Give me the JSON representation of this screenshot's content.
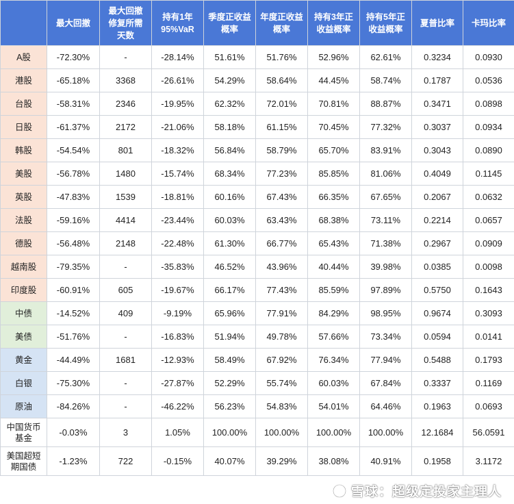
{
  "table": {
    "headers": [
      "",
      "最大回撤",
      "最大回撤\n修复所需\n天数",
      "持有1年\n95%VaR",
      "季度正收益\n概率",
      "年度正收益\n概率",
      "持有3年正\n收益概率",
      "持有5年正\n收益概率",
      "夏普比率",
      "卡玛比率"
    ],
    "rows": [
      {
        "name": "A股",
        "group": "equity",
        "values": [
          "-72.30%",
          "-",
          "-28.14%",
          "51.61%",
          "51.76%",
          "52.96%",
          "62.61%",
          "0.3234",
          "0.0930"
        ]
      },
      {
        "name": "港股",
        "group": "equity",
        "values": [
          "-65.18%",
          "3368",
          "-26.61%",
          "54.29%",
          "58.64%",
          "44.45%",
          "58.74%",
          "0.1787",
          "0.0536"
        ]
      },
      {
        "name": "台股",
        "group": "equity",
        "values": [
          "-58.31%",
          "2346",
          "-19.95%",
          "62.32%",
          "72.01%",
          "70.81%",
          "88.87%",
          "0.3471",
          "0.0898"
        ]
      },
      {
        "name": "日股",
        "group": "equity",
        "values": [
          "-61.37%",
          "2172",
          "-21.06%",
          "58.18%",
          "61.15%",
          "70.45%",
          "77.32%",
          "0.3037",
          "0.0934"
        ]
      },
      {
        "name": "韩股",
        "group": "equity",
        "values": [
          "-54.54%",
          "801",
          "-18.32%",
          "56.84%",
          "58.79%",
          "65.70%",
          "83.91%",
          "0.3043",
          "0.0890"
        ]
      },
      {
        "name": "美股",
        "group": "equity",
        "values": [
          "-56.78%",
          "1480",
          "-15.74%",
          "68.34%",
          "77.23%",
          "85.85%",
          "81.06%",
          "0.4049",
          "0.1145"
        ]
      },
      {
        "name": "英股",
        "group": "equity",
        "values": [
          "-47.83%",
          "1539",
          "-18.81%",
          "60.16%",
          "67.43%",
          "66.35%",
          "67.65%",
          "0.2067",
          "0.0632"
        ]
      },
      {
        "name": "法股",
        "group": "equity",
        "values": [
          "-59.16%",
          "4414",
          "-23.44%",
          "60.03%",
          "63.43%",
          "68.38%",
          "73.11%",
          "0.2214",
          "0.0657"
        ]
      },
      {
        "name": "德股",
        "group": "equity",
        "values": [
          "-56.48%",
          "2148",
          "-22.48%",
          "61.30%",
          "66.77%",
          "65.43%",
          "71.38%",
          "0.2967",
          "0.0909"
        ]
      },
      {
        "name": "越南股",
        "group": "equity",
        "values": [
          "-79.35%",
          "-",
          "-35.83%",
          "46.52%",
          "43.96%",
          "40.44%",
          "39.98%",
          "0.0385",
          "0.0098"
        ]
      },
      {
        "name": "印度股",
        "group": "equity",
        "values": [
          "-60.91%",
          "605",
          "-19.67%",
          "66.17%",
          "77.43%",
          "85.59%",
          "97.89%",
          "0.5750",
          "0.1643"
        ]
      },
      {
        "name": "中债",
        "group": "bond",
        "values": [
          "-14.52%",
          "409",
          "-9.19%",
          "65.96%",
          "77.91%",
          "84.29%",
          "98.95%",
          "0.9674",
          "0.3093"
        ]
      },
      {
        "name": "美债",
        "group": "bond",
        "values": [
          "-51.76%",
          "-",
          "-16.83%",
          "51.94%",
          "49.78%",
          "57.66%",
          "73.34%",
          "0.0594",
          "0.0141"
        ]
      },
      {
        "name": "黄金",
        "group": "commodity",
        "values": [
          "-44.49%",
          "1681",
          "-12.93%",
          "58.49%",
          "67.92%",
          "76.34%",
          "77.94%",
          "0.5488",
          "0.1793"
        ]
      },
      {
        "name": "白银",
        "group": "commodity",
        "values": [
          "-75.30%",
          "-",
          "-27.87%",
          "52.29%",
          "55.74%",
          "60.03%",
          "67.84%",
          "0.3337",
          "0.1169"
        ]
      },
      {
        "name": "原油",
        "group": "commodity",
        "values": [
          "-84.26%",
          "-",
          "-46.22%",
          "56.23%",
          "54.83%",
          "54.01%",
          "64.46%",
          "0.1963",
          "0.0693"
        ]
      },
      {
        "name": "中国货币\n基金",
        "group": "cash",
        "values": [
          "-0.03%",
          "3",
          "1.05%",
          "100.00%",
          "100.00%",
          "100.00%",
          "100.00%",
          "12.1684",
          "56.0591"
        ]
      },
      {
        "name": "美国超短\n期国债",
        "group": "cash",
        "values": [
          "-1.23%",
          "722",
          "-0.15%",
          "40.07%",
          "39.29%",
          "38.08%",
          "40.91%",
          "0.1958",
          "3.1172"
        ]
      }
    ]
  },
  "watermark": {
    "text": "雪球：超级定投家主理人",
    "icon": "snowball-logo-icon"
  }
}
